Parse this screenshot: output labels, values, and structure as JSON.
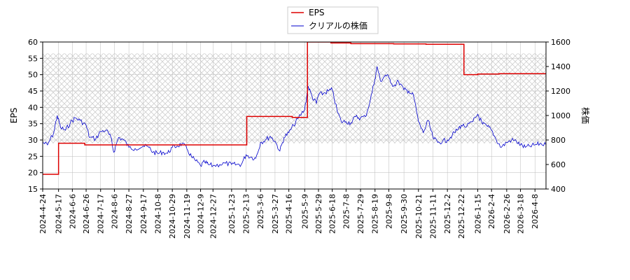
{
  "chart_data": {
    "type": "line",
    "legend": {
      "placement": "top-center",
      "entries": [
        "EPS",
        "クリアルの株価"
      ]
    },
    "ylabel_left": "EPS",
    "ylabel_right": "株価",
    "ylim_left": [
      15,
      60
    ],
    "ylim_right": [
      400,
      1600
    ],
    "yticks_left": [
      15,
      20,
      25,
      30,
      35,
      40,
      45,
      50,
      55,
      60
    ],
    "yticks_right": [
      400,
      600,
      800,
      1000,
      1200,
      1400,
      1600
    ],
    "xlim": [
      "2024-04-24",
      "2026-04-24"
    ],
    "xticks": [
      "2024-4-24",
      "2024-5-17",
      "2024-6-6",
      "2024-6-26",
      "2024-7-17",
      "2024-8-6",
      "2024-8-27",
      "2024-9-17",
      "2024-10-8",
      "2024-10-29",
      "2024-11-19",
      "2024-12-9",
      "2024-12-27",
      "2025-1-23",
      "2025-2-13",
      "2025-3-6",
      "2025-3-27",
      "2025-4-16",
      "2025-5-9",
      "2025-5-29",
      "2025-6-18",
      "2025-7-8",
      "2025-7-29",
      "2025-8-19",
      "2025-9-8",
      "2025-9-30",
      "2025-10-21",
      "2025-11-11",
      "2025-12-2",
      "2025-12-22",
      "2026-1-15",
      "2026-2-4",
      "2026-2-26",
      "2026-3-18",
      "2026-4-8"
    ],
    "grid": true,
    "colors": {
      "eps": "#dd0000",
      "price": "#0000cc",
      "hatch": "#cfcfcf",
      "grid": "#bbbbbb"
    },
    "shaded_band_left": [
      29,
      56.5
    ],
    "series": [
      {
        "name": "EPS",
        "axis": "left",
        "step": true,
        "points": [
          [
            "2024-04-24",
            19.5
          ],
          [
            "2024-05-17",
            29.0
          ],
          [
            "2024-06-24",
            28.5
          ],
          [
            "2025-02-14",
            37.2
          ],
          [
            "2025-04-21",
            36.9
          ],
          [
            "2025-05-13",
            60.0
          ],
          [
            "2025-06-16",
            59.7
          ],
          [
            "2025-07-15",
            59.5
          ],
          [
            "2025-09-15",
            59.4
          ],
          [
            "2025-11-01",
            59.3
          ],
          [
            "2025-12-26",
            50.0
          ],
          [
            "2026-01-15",
            50.2
          ],
          [
            "2026-02-15",
            50.3
          ],
          [
            "2026-04-24",
            50.3
          ]
        ]
      },
      {
        "name": "クリアルの株価",
        "axis": "right",
        "points": [
          [
            "2024-04-24",
            780
          ],
          [
            "2024-05-01",
            760
          ],
          [
            "2024-05-10",
            860
          ],
          [
            "2024-05-15",
            1000
          ],
          [
            "2024-05-20",
            900
          ],
          [
            "2024-05-27",
            880
          ],
          [
            "2024-06-03",
            940
          ],
          [
            "2024-06-10",
            980
          ],
          [
            "2024-06-17",
            960
          ],
          [
            "2024-06-26",
            920
          ],
          [
            "2024-07-01",
            820
          ],
          [
            "2024-07-10",
            810
          ],
          [
            "2024-07-17",
            870
          ],
          [
            "2024-07-25",
            880
          ],
          [
            "2024-08-01",
            820
          ],
          [
            "2024-08-05",
            700
          ],
          [
            "2024-08-12",
            820
          ],
          [
            "2024-08-20",
            800
          ],
          [
            "2024-08-27",
            740
          ],
          [
            "2024-09-05",
            730
          ],
          [
            "2024-09-17",
            750
          ],
          [
            "2024-09-25",
            740
          ],
          [
            "2024-10-01",
            700
          ],
          [
            "2024-10-08",
            690
          ],
          [
            "2024-10-15",
            700
          ],
          [
            "2024-10-22",
            690
          ],
          [
            "2024-10-29",
            740
          ],
          [
            "2024-11-05",
            750
          ],
          [
            "2024-11-12",
            770
          ],
          [
            "2024-11-19",
            730
          ],
          [
            "2024-11-26",
            660
          ],
          [
            "2024-12-02",
            630
          ],
          [
            "2024-12-09",
            590
          ],
          [
            "2024-12-15",
            620
          ],
          [
            "2024-12-20",
            600
          ],
          [
            "2024-12-27",
            590
          ],
          [
            "2025-01-06",
            600
          ],
          [
            "2025-01-14",
            610
          ],
          [
            "2025-01-23",
            600
          ],
          [
            "2025-01-30",
            600
          ],
          [
            "2025-02-06",
            600
          ],
          [
            "2025-02-13",
            680
          ],
          [
            "2025-02-20",
            660
          ],
          [
            "2025-02-27",
            650
          ],
          [
            "2025-03-06",
            780
          ],
          [
            "2025-03-13",
            800
          ],
          [
            "2025-03-20",
            830
          ],
          [
            "2025-03-27",
            790
          ],
          [
            "2025-04-03",
            710
          ],
          [
            "2025-04-09",
            820
          ],
          [
            "2025-04-16",
            860
          ],
          [
            "2025-04-23",
            920
          ],
          [
            "2025-04-30",
            980
          ],
          [
            "2025-05-09",
            1050
          ],
          [
            "2025-05-14",
            1240
          ],
          [
            "2025-05-20",
            1150
          ],
          [
            "2025-05-26",
            1100
          ],
          [
            "2025-05-29",
            1170
          ],
          [
            "2025-06-05",
            1180
          ],
          [
            "2025-06-12",
            1200
          ],
          [
            "2025-06-18",
            1210
          ],
          [
            "2025-06-25",
            1040
          ],
          [
            "2025-07-01",
            950
          ],
          [
            "2025-07-08",
            950
          ],
          [
            "2025-07-15",
            940
          ],
          [
            "2025-07-22",
            990
          ],
          [
            "2025-07-29",
            980
          ],
          [
            "2025-08-05",
            990
          ],
          [
            "2025-08-12",
            1120
          ],
          [
            "2025-08-19",
            1300
          ],
          [
            "2025-08-22",
            1400
          ],
          [
            "2025-08-27",
            1280
          ],
          [
            "2025-09-03",
            1330
          ],
          [
            "2025-09-08",
            1310
          ],
          [
            "2025-09-15",
            1240
          ],
          [
            "2025-09-22",
            1280
          ],
          [
            "2025-09-30",
            1210
          ],
          [
            "2025-10-07",
            1200
          ],
          [
            "2025-10-14",
            1160
          ],
          [
            "2025-10-21",
            950
          ],
          [
            "2025-10-28",
            860
          ],
          [
            "2025-11-04",
            960
          ],
          [
            "2025-11-11",
            820
          ],
          [
            "2025-11-18",
            780
          ],
          [
            "2025-11-25",
            790
          ],
          [
            "2025-12-02",
            800
          ],
          [
            "2025-12-09",
            840
          ],
          [
            "2025-12-16",
            880
          ],
          [
            "2025-12-22",
            920
          ],
          [
            "2025-12-30",
            910
          ],
          [
            "2026-01-08",
            950
          ],
          [
            "2026-01-15",
            1010
          ],
          [
            "2026-01-22",
            930
          ],
          [
            "2026-01-29",
            910
          ],
          [
            "2026-02-04",
            880
          ],
          [
            "2026-02-11",
            800
          ],
          [
            "2026-02-18",
            740
          ],
          [
            "2026-02-26",
            780
          ],
          [
            "2026-03-05",
            800
          ],
          [
            "2026-03-12",
            790
          ],
          [
            "2026-03-18",
            760
          ],
          [
            "2026-03-25",
            740
          ],
          [
            "2026-04-01",
            750
          ],
          [
            "2026-04-08",
            760
          ],
          [
            "2026-04-15",
            770
          ],
          [
            "2026-04-24",
            760
          ]
        ]
      }
    ]
  }
}
